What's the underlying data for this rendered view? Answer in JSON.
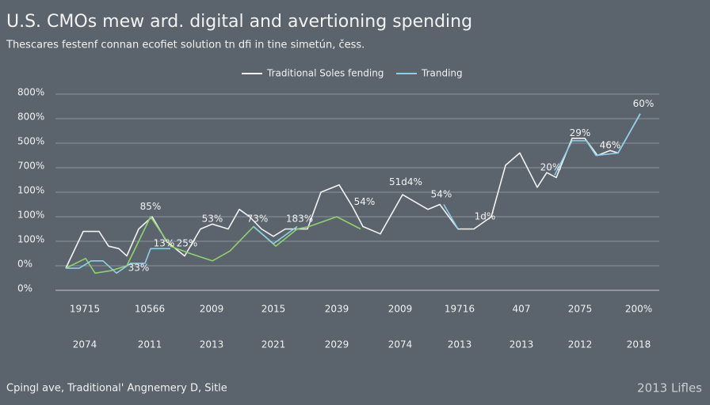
{
  "chart_data": {
    "type": "line",
    "title": "U.S. CMOs mew ard. digital and avertioning spending",
    "subtitle": "Thescares festenf connan ecofiet solution tn dfi in tine simetún, čess.",
    "footer_left": "Cpingl ave, Traditional' Angnemery D, Sitle",
    "footer_right": "2013 Lifles",
    "xlim": [
      0,
      760
    ],
    "ylim": [
      0,
      8
    ],
    "grid": true,
    "legend": "top",
    "yticks": [
      {
        "value": 0,
        "label": "0%"
      },
      {
        "value": 1,
        "label": "0%"
      },
      {
        "value": 2,
        "label": "100%"
      },
      {
        "value": 3,
        "label": "100%"
      },
      {
        "value": 4,
        "label": "100%"
      },
      {
        "value": 5,
        "label": "700%"
      },
      {
        "value": 6,
        "label": "500%"
      },
      {
        "value": 7,
        "label": "800%"
      },
      {
        "value": 8,
        "label": "800%"
      }
    ],
    "xticks": [
      {
        "value": 37,
        "label": "19715"
      },
      {
        "value": 119,
        "label": "10566"
      },
      {
        "value": 197,
        "label": "2009"
      },
      {
        "value": 275,
        "label": "2015"
      },
      {
        "value": 355,
        "label": "2039"
      },
      {
        "value": 435,
        "label": "2009"
      },
      {
        "value": 510,
        "label": "19716"
      },
      {
        "value": 588,
        "label": "407"
      },
      {
        "value": 662,
        "label": "2075"
      },
      {
        "value": 736,
        "label": "200%"
      }
    ],
    "xticks_secondary": [
      "2074",
      "2011",
      "2013",
      "2021",
      "2029",
      "2074",
      "2013",
      "2013",
      "2012",
      "2018"
    ],
    "series": [
      {
        "name": "Traditional Soles fending",
        "color": "#f2f2f2",
        "x": [
          13,
          35,
          55,
          67,
          80,
          90,
          105,
          122,
          140,
          163,
          183,
          198,
          218,
          232,
          245,
          260,
          275,
          290,
          308,
          318,
          335,
          358,
          375,
          388,
          410,
          438,
          470,
          485,
          508,
          528,
          550,
          568,
          586,
          608,
          620,
          632,
          652,
          668,
          684,
          700,
          710,
          738
        ],
        "values": [
          0.9,
          2.4,
          2.4,
          1.8,
          1.7,
          1.4,
          2.5,
          3.0,
          2.0,
          1.4,
          2.5,
          2.7,
          2.5,
          3.3,
          3.0,
          2.5,
          2.2,
          2.5,
          2.5,
          2.5,
          4.0,
          4.3,
          3.4,
          2.6,
          2.3,
          3.9,
          3.3,
          3.5,
          2.5,
          2.5,
          3.0,
          5.1,
          5.6,
          4.2,
          4.8,
          4.6,
          6.2,
          6.2,
          5.5,
          5.7,
          5.6,
          7.2
        ]
      },
      {
        "color": "#8fd16a",
        "x": [
          13,
          38,
          50,
          70,
          90,
          120,
          145,
          170,
          198,
          220,
          250,
          278,
          305,
          320,
          355,
          385
        ],
        "values": [
          0.9,
          1.3,
          0.7,
          0.8,
          1.0,
          3.0,
          1.8,
          1.5,
          1.2,
          1.6,
          2.6,
          1.8,
          2.5,
          2.6,
          3.0,
          2.5
        ]
      },
      {
        "name": "Tranding",
        "color": "#8ecfe8",
        "x": [
          13,
          30,
          45,
          60,
          77,
          95,
          113,
          120,
          130,
          145,
          200,
          250,
          275,
          305,
          400,
          490,
          508,
          570,
          630,
          652,
          670,
          682,
          710,
          738
        ],
        "values": [
          0.9,
          0.9,
          1.2,
          1.2,
          0.7,
          1.1,
          1.1,
          1.7,
          1.7,
          1.7,
          null,
          2.6,
          1.9,
          2.6,
          null,
          3.5,
          2.5,
          null,
          4.7,
          6.1,
          6.1,
          5.5,
          5.6,
          7.2
        ]
      }
    ],
    "annotations": [
      {
        "text": "85%",
        "x": 120,
        "y": 3.4
      },
      {
        "text": "13%",
        "x": 137,
        "y": 1.9
      },
      {
        "text": "25%",
        "x": 166,
        "y": 1.9
      },
      {
        "text": "33%",
        "x": 105,
        "y": 0.9
      },
      {
        "text": "53%",
        "x": 198,
        "y": 2.9
      },
      {
        "text": "73%",
        "x": 255,
        "y": 2.9
      },
      {
        "text": "183%",
        "x": 308,
        "y": 2.9
      },
      {
        "text": "54%",
        "x": 390,
        "y": 3.6
      },
      {
        "text": "51d4%",
        "x": 442,
        "y": 4.4
      },
      {
        "text": "54%",
        "x": 487,
        "y": 3.9
      },
      {
        "text": "1d%",
        "x": 542,
        "y": 3.0
      },
      {
        "text": "20%",
        "x": 625,
        "y": 5.0
      },
      {
        "text": "29%",
        "x": 662,
        "y": 6.4
      },
      {
        "text": "46%",
        "x": 700,
        "y": 5.9
      },
      {
        "text": "60%",
        "x": 742,
        "y": 7.6
      }
    ]
  }
}
